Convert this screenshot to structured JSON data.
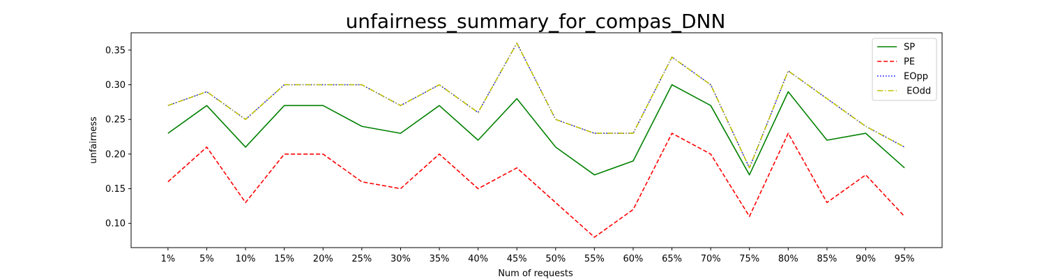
{
  "chart_data": {
    "type": "line",
    "title": "unfairness_summary_for_compas_DNN",
    "xlabel": "Num of requests",
    "ylabel": "unfairness",
    "categories": [
      "1%",
      "5%",
      "10%",
      "15%",
      "20%",
      "25%",
      "30%",
      "35%",
      "40%",
      "45%",
      "50%",
      "55%",
      "60%",
      "65%",
      "70%",
      "75%",
      "80%",
      "85%",
      "90%",
      "95%"
    ],
    "ylim": [
      0.065,
      0.375
    ],
    "yticks": [
      "0.10",
      "0.15",
      "0.20",
      "0.25",
      "0.30",
      "0.35"
    ],
    "grid": false,
    "legend_position": "top-right",
    "series": [
      {
        "name": "SP",
        "color": "#008000",
        "style": "solid",
        "values": [
          0.23,
          0.27,
          0.21,
          0.27,
          0.27,
          0.24,
          0.23,
          0.27,
          0.22,
          0.28,
          0.21,
          0.17,
          0.19,
          0.3,
          0.27,
          0.17,
          0.29,
          0.22,
          0.23,
          0.18
        ]
      },
      {
        "name": "PE",
        "color": "#ff0000",
        "style": "dashed",
        "values": [
          0.16,
          0.21,
          0.13,
          0.2,
          0.2,
          0.16,
          0.15,
          0.2,
          0.15,
          0.18,
          0.13,
          0.08,
          0.12,
          0.23,
          0.2,
          0.11,
          0.23,
          0.13,
          0.17,
          0.11
        ]
      },
      {
        "name": "EOpp",
        "color": "#0000ff",
        "style": "dotted",
        "values": [
          0.27,
          0.29,
          0.25,
          0.3,
          0.3,
          0.3,
          0.27,
          0.3,
          0.26,
          0.36,
          0.25,
          0.23,
          0.23,
          0.34,
          0.3,
          0.18,
          0.32,
          0.28,
          0.24,
          0.21
        ]
      },
      {
        "name": " EOdd",
        "color": "#bfbf00",
        "style": "dashdot",
        "values": [
          0.27,
          0.29,
          0.25,
          0.3,
          0.3,
          0.3,
          0.27,
          0.3,
          0.26,
          0.36,
          0.25,
          0.23,
          0.23,
          0.34,
          0.3,
          0.18,
          0.32,
          0.28,
          0.24,
          0.21
        ]
      }
    ]
  }
}
